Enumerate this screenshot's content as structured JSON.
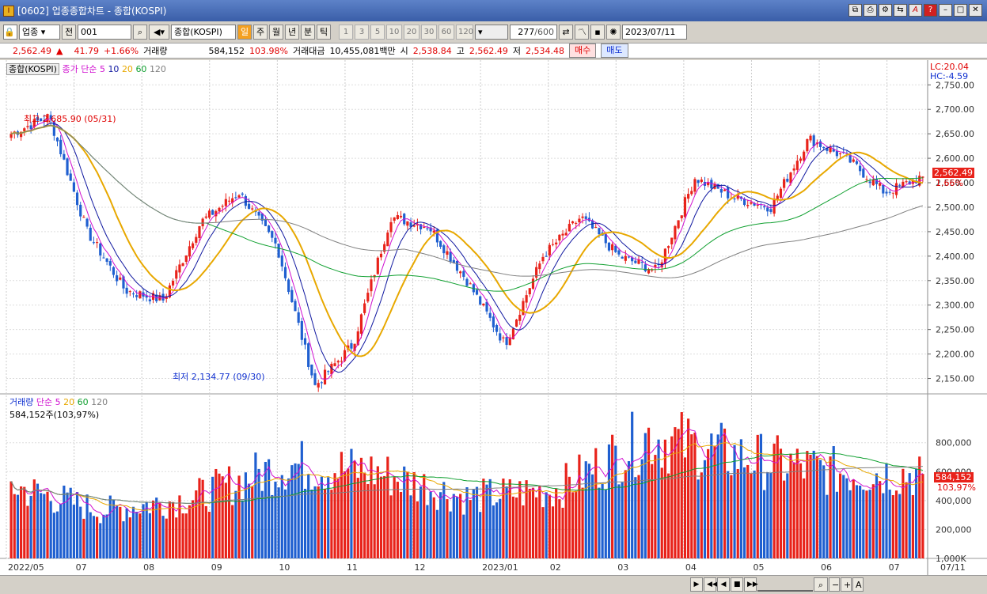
{
  "window": {
    "title": "[0602] 업종종합차트 - 종합(KOSPI)",
    "buttons": [
      "restore-group",
      "print",
      "chart-settings",
      "help",
      "minimize",
      "maximize",
      "close"
    ]
  },
  "toolbar": {
    "market_type": "업종",
    "prev_label": "전",
    "code": "001",
    "name": "종합(KOSPI)",
    "periods": [
      "일",
      "주",
      "월",
      "년",
      "분",
      "틱"
    ],
    "selected_period": "일",
    "intervals": [
      "1",
      "3",
      "5",
      "10",
      "20",
      "30",
      "60",
      "120"
    ],
    "count": "277",
    "count_max": "/600",
    "date": "2023/07/11"
  },
  "quote": {
    "price": "2,562.49",
    "arrow": "▲",
    "change": "41.79",
    "change_pct": "+1.66%",
    "vol_label": "거래량",
    "volume": "584,152",
    "vol_ratio": "103.98%",
    "amt_label": "거래대금",
    "amount": "10,455,081백만",
    "open_label": "시",
    "open": "2,538.84",
    "high_label": "고",
    "high": "2,562.49",
    "low_label": "저",
    "low": "2,534.48",
    "buy": "매수",
    "sell": "매도"
  },
  "price_panel": {
    "series_name": "종합(KOSPI)",
    "ma_label": "종가 단순",
    "ma_periods": [
      "5",
      "10",
      "20",
      "60",
      "120"
    ],
    "lc": "LC:20.04",
    "hc": "HC:-4.59",
    "high_note": "최고 2,685.90 (05/31)",
    "low_note": "최저 2,134.77 (09/30)",
    "last_price": "2,562.49",
    "last_pct": "1.66%",
    "y_ticks": [
      "2,750.00",
      "2,700.00",
      "2,650.00",
      "2,600.00",
      "2,550.00",
      "2,500.00",
      "2,450.00",
      "2,400.00",
      "2,350.00",
      "2,300.00",
      "2,250.00",
      "2,200.00",
      "2,150.00"
    ]
  },
  "volume_panel": {
    "label": "거래량",
    "ma_label": "단순",
    "ma_periods": [
      "5",
      "20",
      "60",
      "120"
    ],
    "current": "584,152주(103,97%)",
    "last": "584,152",
    "last_pct": "103,97%",
    "y_ticks": [
      "1,000K",
      "800,000",
      "600,000",
      "400,000",
      "200,000"
    ]
  },
  "x_labels": [
    "2022/05",
    "07",
    "08",
    "09",
    "10",
    "11",
    "12",
    "2023/01",
    "02",
    "03",
    "04",
    "05",
    "06",
    "07",
    "07/11"
  ],
  "colors": {
    "up": "#e8221a",
    "down": "#1f5fd0",
    "ma5": "#d010d0",
    "ma10": "#1018a0",
    "ma20": "#e8a800",
    "ma60": "#10a030",
    "ma120": "#808080"
  },
  "chart_data": {
    "type": "candlestick",
    "title": "종합(KOSPI)",
    "x_range": [
      "2022/05",
      "2023/07/11"
    ],
    "ylim": [
      2125,
      2765
    ],
    "volume_ylim": [
      0,
      1050000
    ],
    "anchors": [
      {
        "date": "2022/05",
        "close": 2650
      },
      {
        "date": "2022/05/31",
        "close": 2685.9
      },
      {
        "date": "2022/06",
        "close": 2450
      },
      {
        "date": "2022/06",
        "close": 2330
      },
      {
        "date": "2022/07",
        "close": 2310
      },
      {
        "date": "2022/08",
        "close": 2470
      },
      {
        "date": "2022/08",
        "close": 2530
      },
      {
        "date": "2022/09",
        "close": 2420
      },
      {
        "date": "2022/09/30",
        "close": 2134.77
      },
      {
        "date": "2022/10",
        "close": 2220
      },
      {
        "date": "2022/11",
        "close": 2480
      },
      {
        "date": "2022/12",
        "close": 2460
      },
      {
        "date": "2022/12",
        "close": 2350
      },
      {
        "date": "2023/01",
        "close": 2220
      },
      {
        "date": "2023/01",
        "close": 2400
      },
      {
        "date": "2023/02",
        "close": 2480
      },
      {
        "date": "2023/03",
        "close": 2400
      },
      {
        "date": "2023/03",
        "close": 2370
      },
      {
        "date": "2023/04",
        "close": 2560
      },
      {
        "date": "2023/04",
        "close": 2520
      },
      {
        "date": "2023/05",
        "close": 2500
      },
      {
        "date": "2023/06",
        "close": 2640
      },
      {
        "date": "2023/06",
        "close": 2600
      },
      {
        "date": "2023/07",
        "close": 2530
      },
      {
        "date": "2023/07/11",
        "close": 2562.49
      }
    ],
    "volume_series": [
      {
        "date": "2022/05",
        "volume": 500000
      },
      {
        "date": "2022/07",
        "volume": 330000
      },
      {
        "date": "2022/09",
        "volume": 420000
      },
      {
        "date": "2022/10",
        "volume": 650000
      },
      {
        "date": "2022/11",
        "volume": 600000
      },
      {
        "date": "2023/01",
        "volume": 420000
      },
      {
        "date": "2023/03",
        "volume": 480000
      },
      {
        "date": "2023/04",
        "volume": 850000
      },
      {
        "date": "2023/05",
        "volume": 700000
      },
      {
        "date": "2023/06",
        "volume": 600000
      },
      {
        "date": "2023/07/11",
        "volume": 584152
      }
    ]
  }
}
